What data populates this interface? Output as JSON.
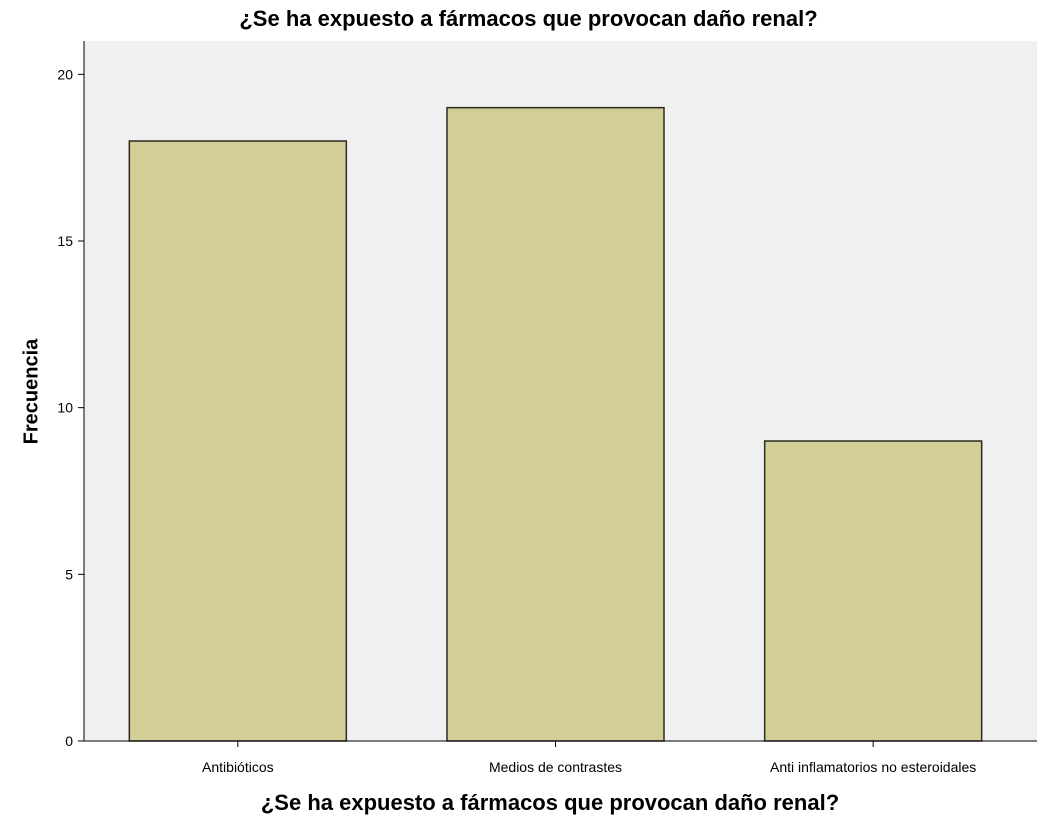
{
  "chart_data": {
    "type": "bar",
    "title": "¿Se ha expuesto a fármacos que provocan daño renal?",
    "xlabel": "¿Se ha expuesto a fármacos que provocan daño renal?",
    "ylabel": "Frecuencia",
    "categories": [
      "Antibióticos",
      "Medios de contrastes",
      "Anti inflamatorios no esteroidales"
    ],
    "values": [
      18,
      19,
      9
    ],
    "ylim": [
      0,
      21
    ],
    "yticks": [
      0,
      5,
      10,
      15,
      20
    ],
    "grid": false,
    "colors": {
      "plot_background": "#f0f0f0",
      "bar_fill": "#d3ce97",
      "bar_stroke": "#2a2a1e"
    }
  }
}
